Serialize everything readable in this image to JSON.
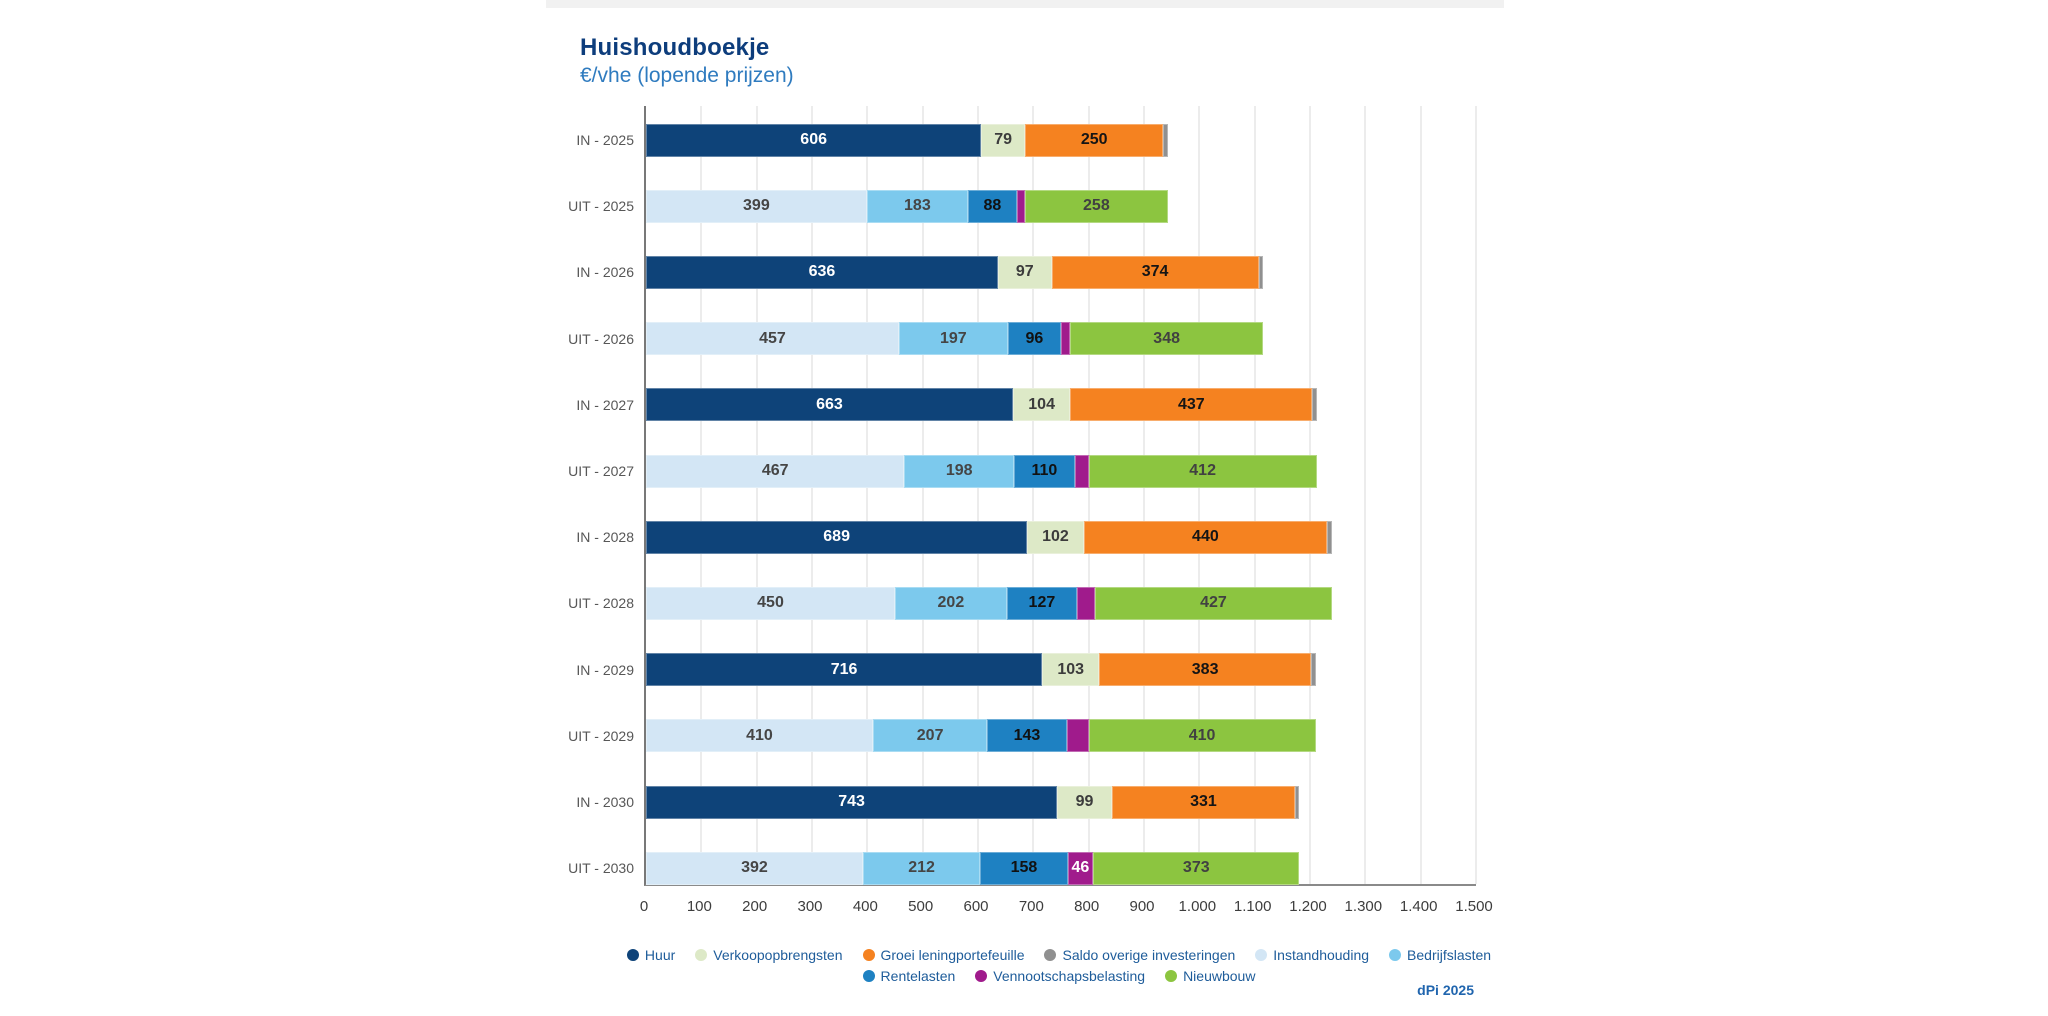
{
  "footer_note": "dPi 2025",
  "chart_data": {
    "type": "bar",
    "orientation": "horizontal",
    "stacked": true,
    "title": "Huishoudboekje",
    "subtitle": "€/vhe (lopende prijzen)",
    "xlabel": "",
    "ylabel": "",
    "xlim": [
      0,
      1500
    ],
    "grid": true,
    "legend_position": "bottom",
    "legend_row_break": 6,
    "x_ticks": [
      "0",
      "100",
      "200",
      "300",
      "400",
      "500",
      "600",
      "700",
      "800",
      "900",
      "1.000",
      "1.100",
      "1.200",
      "1.300",
      "1.400",
      "1.500"
    ],
    "legend": [
      {
        "label": "Huur",
        "color": "#0e4379",
        "text_color": "#ffffff"
      },
      {
        "label": "Verkoopopbrengsten",
        "color": "#dde9c7",
        "text_color": "#3c3c3c"
      },
      {
        "label": "Groei leningportefeuille",
        "color": "#f58220",
        "text_color": "#151515"
      },
      {
        "label": "Saldo overige investeringen",
        "color": "#909090",
        "text_color": "#ffffff"
      },
      {
        "label": "Instandhouding",
        "color": "#d3e6f5",
        "text_color": "#454545"
      },
      {
        "label": "Bedrijfslasten",
        "color": "#7cc9ed",
        "text_color": "#454545"
      },
      {
        "label": "Rentelasten",
        "color": "#1e81c2",
        "text_color": "#111111"
      },
      {
        "label": "Vennootschapsbelasting",
        "color": "#a01b8c",
        "text_color": "#ffffff"
      },
      {
        "label": "Nieuwbouw",
        "color": "#8cc540",
        "text_color": "#414141"
      }
    ],
    "rows": [
      {
        "label": "IN - 2025",
        "segments": [
          {
            "series": "Huur",
            "value": 606,
            "labeled": true
          },
          {
            "series": "Verkoopopbrengsten",
            "value": 79,
            "labeled": true
          },
          {
            "series": "Groei leningportefeuille",
            "value": 250,
            "labeled": true
          },
          {
            "series": "Saldo overige investeringen",
            "value": 8,
            "labeled": false
          }
        ]
      },
      {
        "label": "UIT - 2025",
        "segments": [
          {
            "series": "Instandhouding",
            "value": 399,
            "labeled": true
          },
          {
            "series": "Bedrijfslasten",
            "value": 183,
            "labeled": true
          },
          {
            "series": "Rentelasten",
            "value": 88,
            "labeled": true
          },
          {
            "series": "Vennootschapsbelasting",
            "value": 15,
            "labeled": false
          },
          {
            "series": "Nieuwbouw",
            "value": 258,
            "labeled": true
          }
        ]
      },
      {
        "label": "IN - 2026",
        "segments": [
          {
            "series": "Huur",
            "value": 636,
            "labeled": true
          },
          {
            "series": "Verkoopopbrengsten",
            "value": 97,
            "labeled": true
          },
          {
            "series": "Groei leningportefeuille",
            "value": 374,
            "labeled": true
          },
          {
            "series": "Saldo overige investeringen",
            "value": 8,
            "labeled": false
          }
        ]
      },
      {
        "label": "UIT - 2026",
        "segments": [
          {
            "series": "Instandhouding",
            "value": 457,
            "labeled": true
          },
          {
            "series": "Bedrijfslasten",
            "value": 197,
            "labeled": true
          },
          {
            "series": "Rentelasten",
            "value": 96,
            "labeled": true
          },
          {
            "series": "Vennootschapsbelasting",
            "value": 17,
            "labeled": false
          },
          {
            "series": "Nieuwbouw",
            "value": 348,
            "labeled": true
          }
        ]
      },
      {
        "label": "IN - 2027",
        "segments": [
          {
            "series": "Huur",
            "value": 663,
            "labeled": true
          },
          {
            "series": "Verkoopopbrengsten",
            "value": 104,
            "labeled": true
          },
          {
            "series": "Groei leningportefeuille",
            "value": 437,
            "labeled": true
          },
          {
            "series": "Saldo overige investeringen",
            "value": 8,
            "labeled": false
          }
        ]
      },
      {
        "label": "UIT - 2027",
        "segments": [
          {
            "series": "Instandhouding",
            "value": 467,
            "labeled": true
          },
          {
            "series": "Bedrijfslasten",
            "value": 198,
            "labeled": true
          },
          {
            "series": "Rentelasten",
            "value": 110,
            "labeled": true
          },
          {
            "series": "Vennootschapsbelasting",
            "value": 25,
            "labeled": false
          },
          {
            "series": "Nieuwbouw",
            "value": 412,
            "labeled": true
          }
        ]
      },
      {
        "label": "IN - 2028",
        "segments": [
          {
            "series": "Huur",
            "value": 689,
            "labeled": true
          },
          {
            "series": "Verkoopopbrengsten",
            "value": 102,
            "labeled": true
          },
          {
            "series": "Groei leningportefeuille",
            "value": 440,
            "labeled": true
          },
          {
            "series": "Saldo overige investeringen",
            "value": 8,
            "labeled": false
          }
        ]
      },
      {
        "label": "UIT - 2028",
        "segments": [
          {
            "series": "Instandhouding",
            "value": 450,
            "labeled": true
          },
          {
            "series": "Bedrijfslasten",
            "value": 202,
            "labeled": true
          },
          {
            "series": "Rentelasten",
            "value": 127,
            "labeled": true
          },
          {
            "series": "Vennootschapsbelasting",
            "value": 33,
            "labeled": false
          },
          {
            "series": "Nieuwbouw",
            "value": 427,
            "labeled": true
          }
        ]
      },
      {
        "label": "IN - 2029",
        "segments": [
          {
            "series": "Huur",
            "value": 716,
            "labeled": true
          },
          {
            "series": "Verkoopopbrengsten",
            "value": 103,
            "labeled": true
          },
          {
            "series": "Groei leningportefeuille",
            "value": 383,
            "labeled": true
          },
          {
            "series": "Saldo overige investeringen",
            "value": 8,
            "labeled": false
          }
        ]
      },
      {
        "label": "UIT - 2029",
        "segments": [
          {
            "series": "Instandhouding",
            "value": 410,
            "labeled": true
          },
          {
            "series": "Bedrijfslasten",
            "value": 207,
            "labeled": true
          },
          {
            "series": "Rentelasten",
            "value": 143,
            "labeled": true
          },
          {
            "series": "Vennootschapsbelasting",
            "value": 40,
            "labeled": false
          },
          {
            "series": "Nieuwbouw",
            "value": 410,
            "labeled": true
          }
        ]
      },
      {
        "label": "IN - 2030",
        "segments": [
          {
            "series": "Huur",
            "value": 743,
            "labeled": true
          },
          {
            "series": "Verkoopopbrengsten",
            "value": 99,
            "labeled": true
          },
          {
            "series": "Groei leningportefeuille",
            "value": 331,
            "labeled": true
          },
          {
            "series": "Saldo overige investeringen",
            "value": 8,
            "labeled": false
          }
        ]
      },
      {
        "label": "UIT - 2030",
        "segments": [
          {
            "series": "Instandhouding",
            "value": 392,
            "labeled": true
          },
          {
            "series": "Bedrijfslasten",
            "value": 212,
            "labeled": true
          },
          {
            "series": "Rentelasten",
            "value": 158,
            "labeled": true
          },
          {
            "series": "Vennootschapsbelasting",
            "value": 46,
            "labeled": true
          },
          {
            "series": "Nieuwbouw",
            "value": 373,
            "labeled": true
          }
        ]
      }
    ]
  }
}
